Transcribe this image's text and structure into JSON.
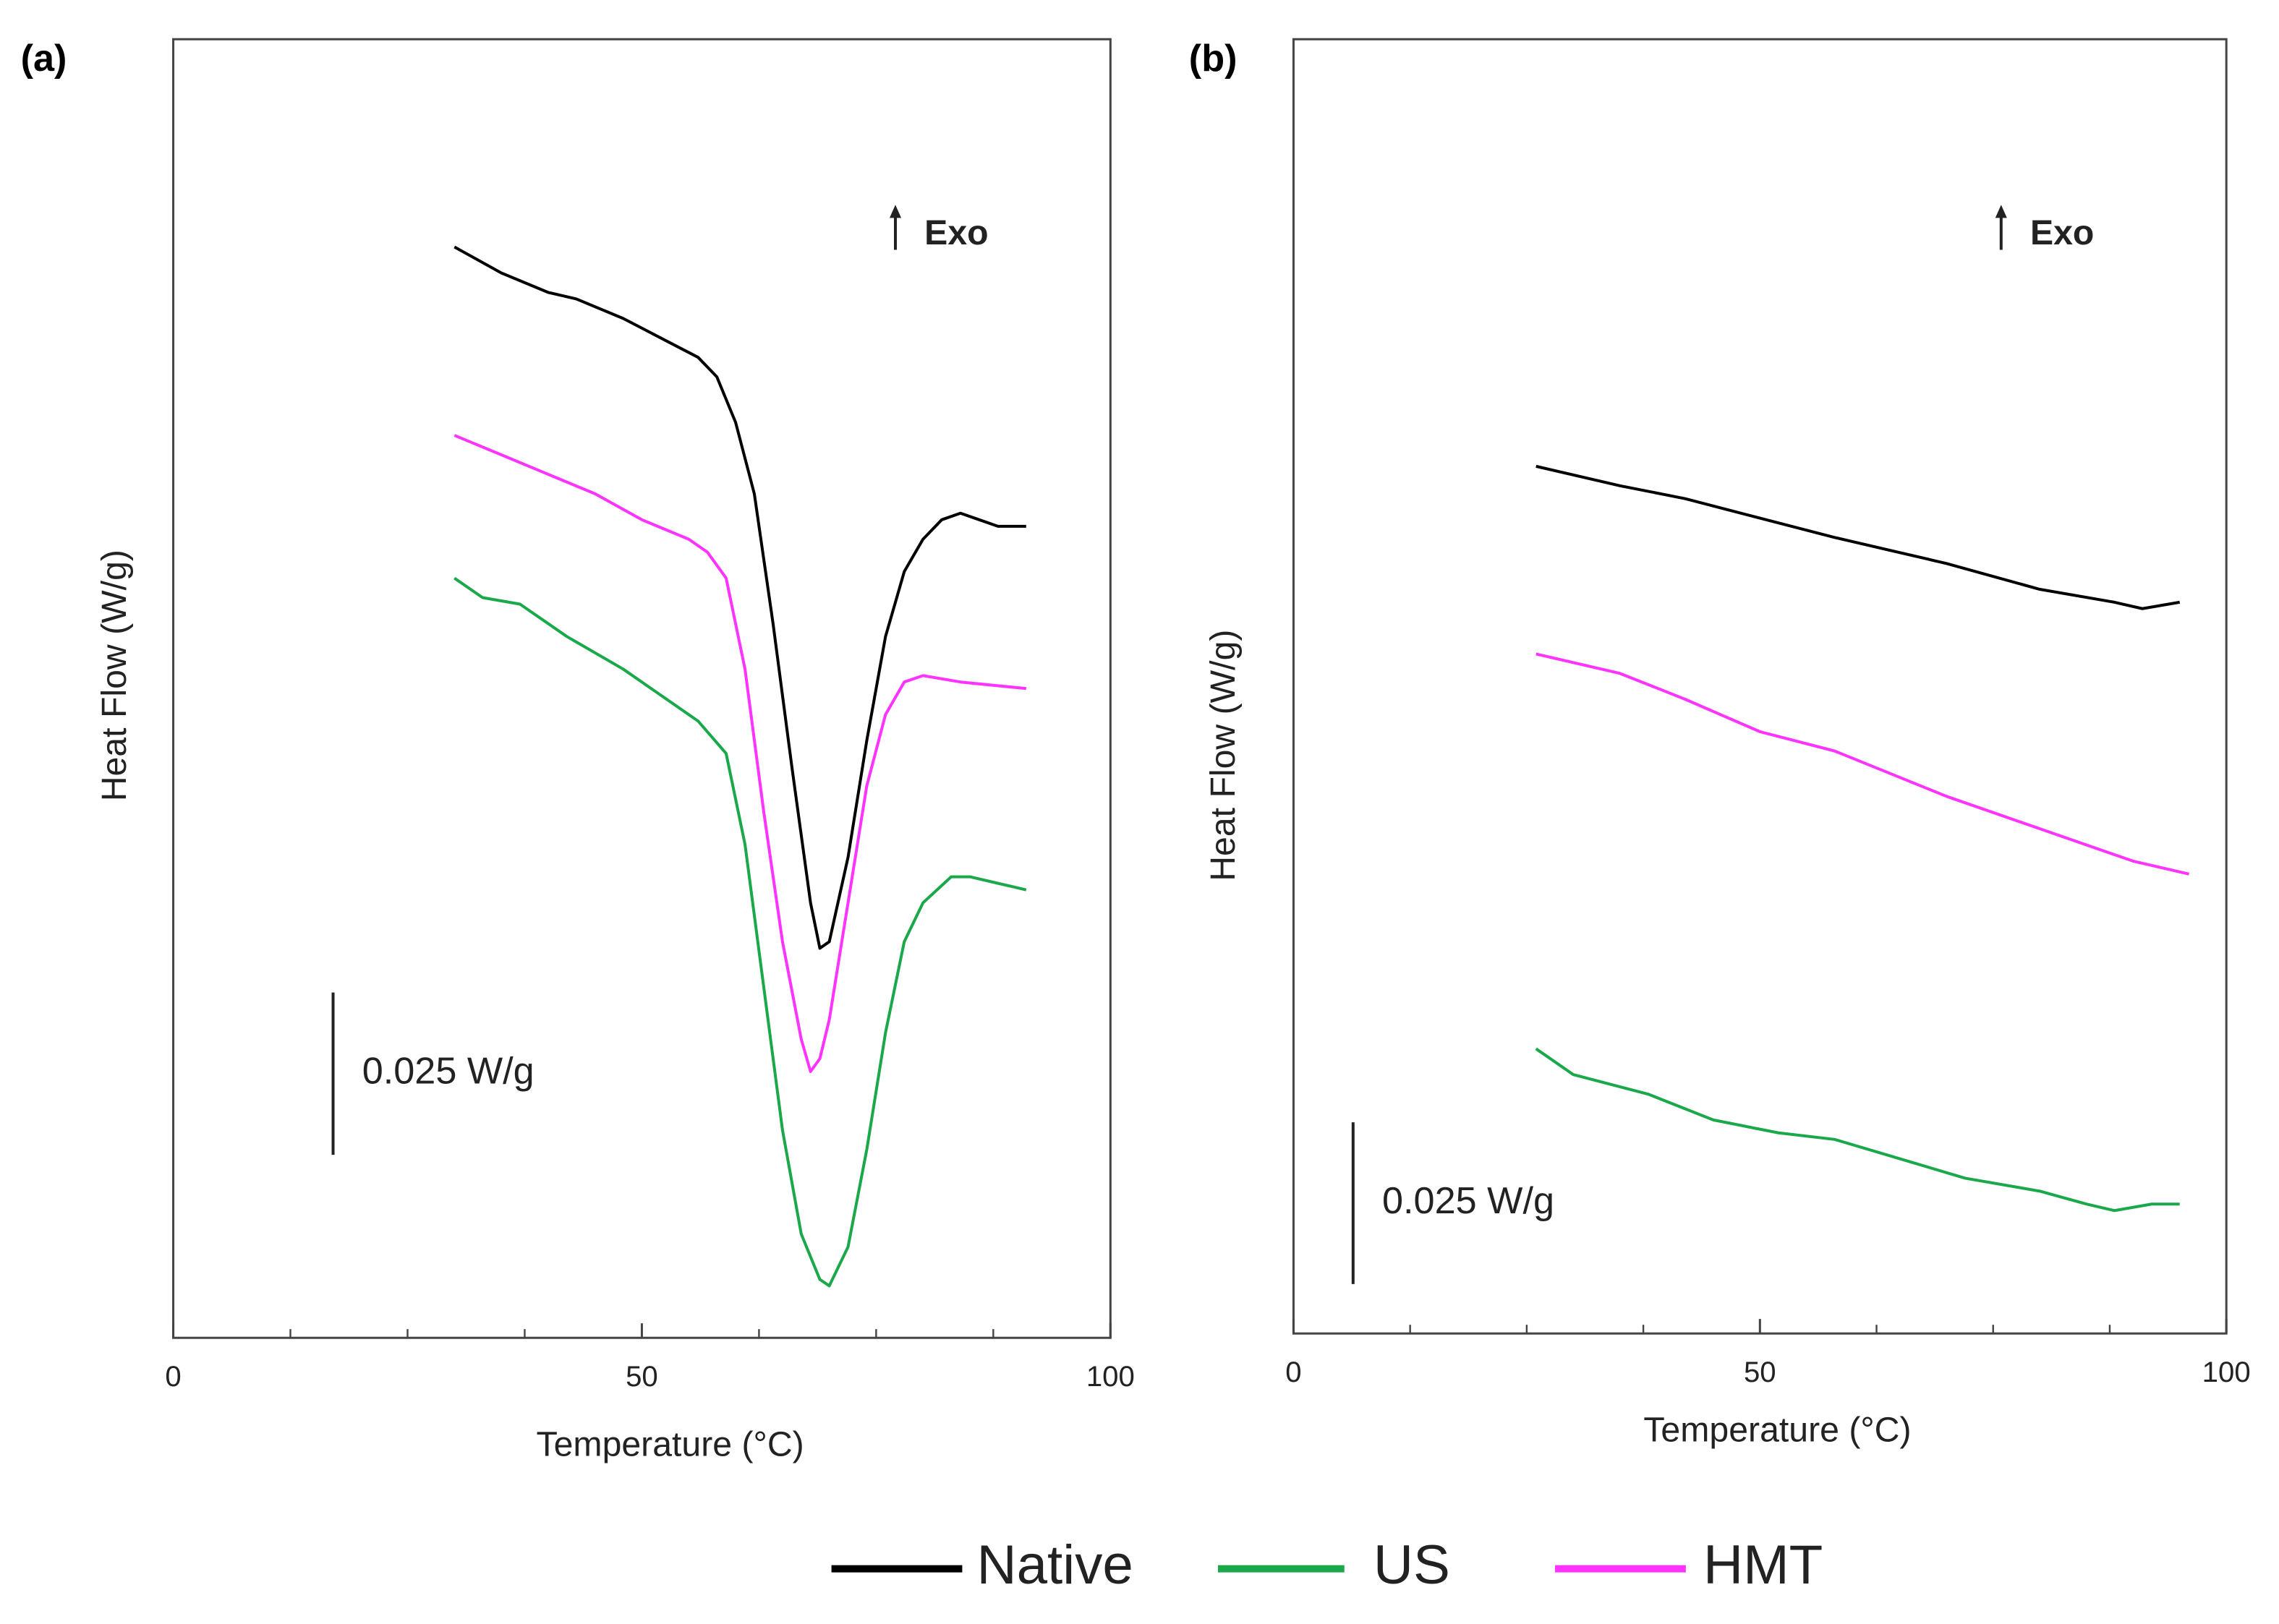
{
  "chart_data": [
    {
      "type": "line",
      "label": "(a)",
      "xlabel": "Temperature (°C)",
      "ylabel": "Heat Flow (W/g)",
      "xlim": [
        0,
        100
      ],
      "ylim": [
        0,
        0.2
      ],
      "xticks": [
        0,
        50,
        100
      ],
      "xminorticks": [
        12.5,
        25,
        37.5,
        62.5,
        75,
        87.5
      ],
      "annotation": "Exo",
      "scale_bar": {
        "label": "0.025 W/g",
        "value": 0.025
      },
      "series": [
        {
          "name": "Native",
          "color": "#000000",
          "x": [
            30,
            35,
            40,
            43,
            48,
            52,
            56,
            58,
            60,
            62,
            64,
            66,
            68,
            69,
            70,
            72,
            74,
            76,
            78,
            80,
            82,
            84,
            86,
            88,
            91
          ],
          "values": [
            0.168,
            0.164,
            0.161,
            0.16,
            0.157,
            0.154,
            0.151,
            0.148,
            0.141,
            0.13,
            0.11,
            0.088,
            0.067,
            0.06,
            0.061,
            0.074,
            0.092,
            0.108,
            0.118,
            0.123,
            0.126,
            0.127,
            0.126,
            0.125,
            0.125
          ]
        },
        {
          "name": "US",
          "color": "#1aa84a",
          "x": [
            30,
            33,
            37,
            42,
            48,
            52,
            56,
            59,
            61,
            63,
            65,
            67,
            69,
            70,
            72,
            74,
            76,
            78,
            80,
            83,
            85,
            88,
            91
          ],
          "values": [
            0.117,
            0.114,
            0.113,
            0.108,
            0.103,
            0.099,
            0.095,
            0.09,
            0.076,
            0.054,
            0.032,
            0.016,
            0.009,
            0.008,
            0.014,
            0.029,
            0.047,
            0.061,
            0.067,
            0.071,
            0.071,
            0.07,
            0.069
          ]
        },
        {
          "name": "HMT",
          "color": "#ff33ff",
          "x": [
            30,
            35,
            40,
            45,
            50,
            55,
            57,
            59,
            61,
            63,
            65,
            67,
            68,
            69,
            70,
            72,
            74,
            76,
            78,
            80,
            84,
            91
          ],
          "values": [
            0.139,
            0.136,
            0.133,
            0.13,
            0.126,
            0.123,
            0.121,
            0.117,
            0.103,
            0.081,
            0.061,
            0.046,
            0.041,
            0.043,
            0.049,
            0.067,
            0.085,
            0.096,
            0.101,
            0.102,
            0.101,
            0.1
          ]
        }
      ]
    },
    {
      "type": "line",
      "label": "(b)",
      "xlabel": "Temperature (°C)",
      "ylabel": "Heat Flow (W/g)",
      "xlim": [
        0,
        100
      ],
      "ylim": [
        0,
        0.2
      ],
      "xticks": [
        0,
        50,
        100
      ],
      "xminorticks": [
        12.5,
        25,
        37.5,
        62.5,
        75,
        87.5
      ],
      "annotation": "Exo",
      "scale_bar": {
        "label": "0.025 W/g",
        "value": 0.025
      },
      "series": [
        {
          "color": "#000000",
          "x": [
            26,
            35,
            42,
            50,
            58,
            70,
            80,
            88,
            91,
            95
          ],
          "values": [
            0.134,
            0.131,
            0.129,
            0.126,
            0.123,
            0.119,
            0.115,
            0.113,
            0.112,
            0.113
          ]
        },
        {
          "color": "#1aa84a",
          "x": [
            26,
            30,
            38,
            45,
            52,
            58,
            65,
            72,
            80,
            85,
            88,
            92,
            95
          ],
          "values": [
            0.044,
            0.04,
            0.037,
            0.033,
            0.031,
            0.03,
            0.027,
            0.024,
            0.022,
            0.02,
            0.019,
            0.02,
            0.02
          ]
        },
        {
          "color": "#ff33ff",
          "x": [
            26,
            35,
            42,
            50,
            58,
            70,
            80,
            90,
            96
          ],
          "values": [
            0.105,
            0.102,
            0.098,
            0.093,
            0.09,
            0.083,
            0.078,
            0.073,
            0.071
          ]
        }
      ]
    }
  ]
}
